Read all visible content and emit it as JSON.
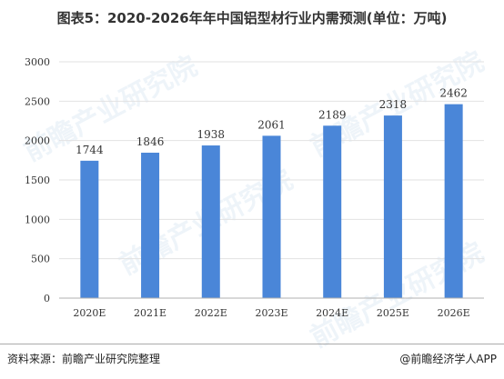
{
  "title": "图表5：2020-2026年年中国铝型材行业内需预测(单位：万吨)",
  "footer": {
    "source": "资料来源：前瞻产业研究院整理",
    "brand": "@前瞻经济学人APP"
  },
  "watermark": "前瞻产业研究院",
  "colors": {
    "bar": "#4a86d8",
    "axis": "#b0b0b0",
    "grid": "#e2e2e2",
    "text": "#333333"
  },
  "chart_data": {
    "type": "bar",
    "title": "图表5：2020-2026年年中国铝型材行业内需预测(单位：万吨)",
    "xlabel": "",
    "ylabel": "",
    "categories": [
      "2020E",
      "2021E",
      "2022E",
      "2023E",
      "2024E",
      "2025E",
      "2026E"
    ],
    "values": [
      1744,
      1846,
      1938,
      2061,
      2189,
      2318,
      2462
    ],
    "ylim": [
      0,
      3000
    ],
    "yticks": [
      0,
      500,
      1000,
      1500,
      2000,
      2500,
      3000
    ],
    "grid": true,
    "data_labels": true
  }
}
